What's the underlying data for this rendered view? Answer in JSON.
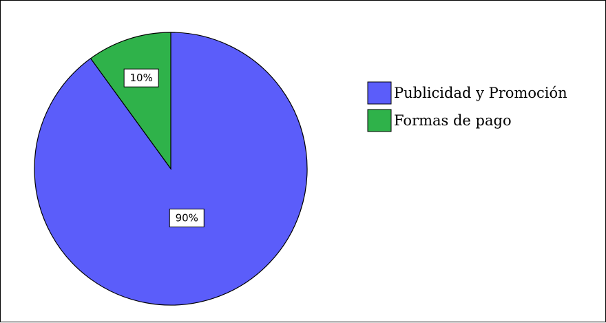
{
  "chart_data": {
    "type": "pie",
    "categories": [
      "Publicidad y Promoción",
      "Formas de pago"
    ],
    "values": [
      90,
      10
    ],
    "value_labels": [
      "90%",
      "10%"
    ],
    "colors": [
      "#5b5dfa",
      "#2fb24a"
    ],
    "start": "top, clockwise from the Publicidad y Promoción slice ending at top",
    "legend_placement": "right",
    "title": "",
    "grid": false
  }
}
